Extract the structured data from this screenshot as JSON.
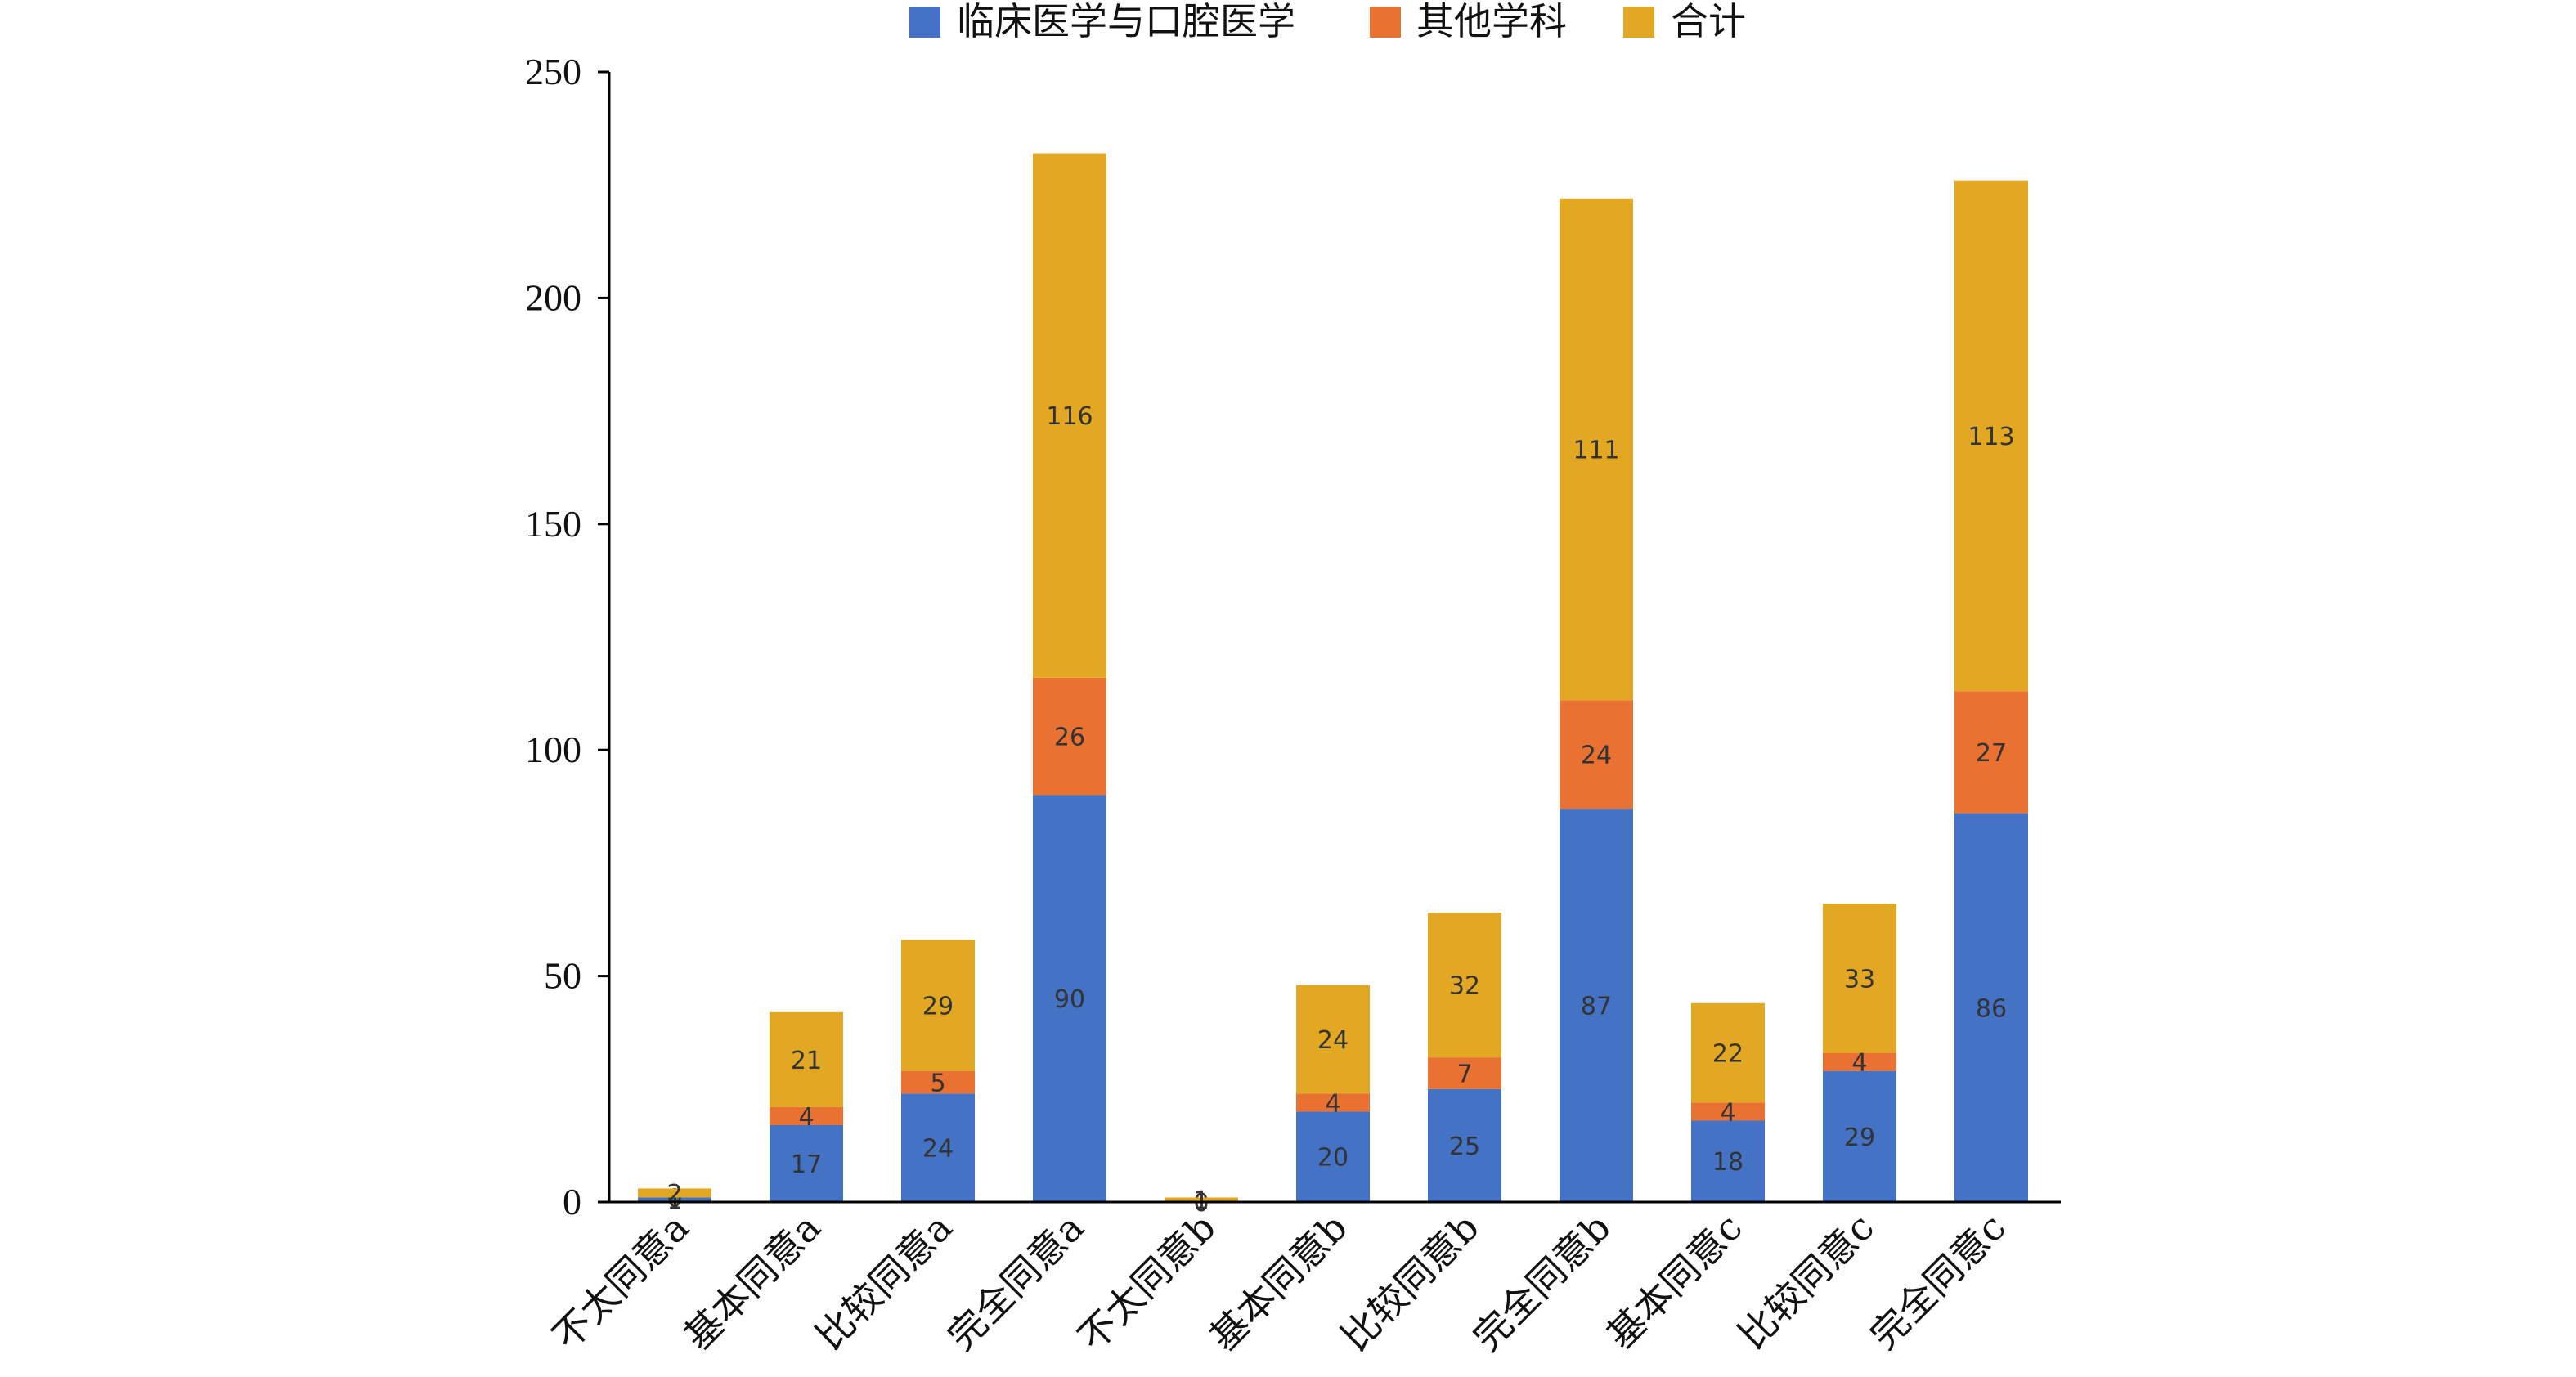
{
  "chart_data": {
    "type": "bar",
    "stacked": true,
    "title": "",
    "xlabel": "",
    "ylabel": "",
    "ylim": [
      0,
      250
    ],
    "yticks": [
      0,
      50,
      100,
      150,
      200,
      250
    ],
    "grid": false,
    "legend_position": "top",
    "categories": [
      "不太同意a",
      "基本同意a",
      "比较同意a",
      "完全同意a",
      "不太同意b",
      "基本同意b",
      "比较同意b",
      "完全同意b",
      "基本同意c",
      "比较同意c",
      "完全同意c"
    ],
    "series": [
      {
        "name": "临床医学与口腔医学",
        "color": "#4472C4",
        "values": [
          1,
          17,
          24,
          90,
          0,
          20,
          25,
          87,
          18,
          29,
          86
        ]
      },
      {
        "name": "其他学科",
        "color": "#E97132",
        "values": [
          0,
          4,
          5,
          26,
          0,
          4,
          7,
          24,
          4,
          4,
          27
        ]
      },
      {
        "name": "合计",
        "color": "#E3A823",
        "values": [
          2,
          21,
          29,
          116,
          1,
          24,
          32,
          111,
          22,
          33,
          113
        ]
      }
    ]
  }
}
